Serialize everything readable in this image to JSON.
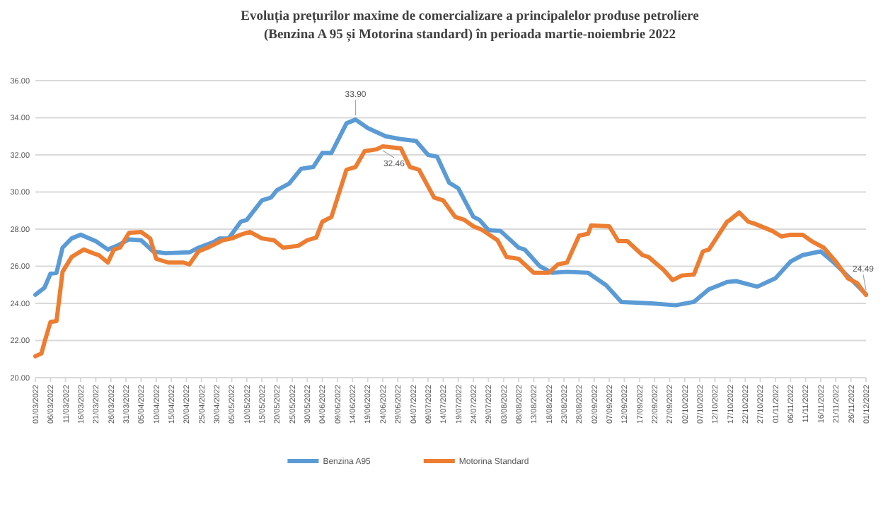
{
  "chart_data": {
    "type": "line",
    "title": "Evoluția prețurilor maxime de comercializare  a principalelor produse petroliere",
    "subtitle": "(Benzina A 95 și Motorina standard) în perioada martie-noiembrie  2022",
    "series": [
      {
        "name": "Benzina A95",
        "color": "#5b9bd5",
        "x": [
          "2022-03-01",
          "2022-03-04",
          "2022-03-06",
          "2022-03-08",
          "2022-03-10",
          "2022-03-13",
          "2022-03-16",
          "2022-03-21",
          "2022-03-25",
          "2022-03-28",
          "2022-04-01",
          "2022-04-05",
          "2022-04-09",
          "2022-04-13",
          "2022-04-21",
          "2022-04-24",
          "2022-04-29",
          "2022-05-01",
          "2022-05-04",
          "2022-05-08",
          "2022-05-10",
          "2022-05-15",
          "2022-05-18",
          "2022-05-20",
          "2022-05-24",
          "2022-05-28",
          "2022-06-01",
          "2022-06-04",
          "2022-06-07",
          "2022-06-12",
          "2022-06-15",
          "2022-06-19",
          "2022-06-25",
          "2022-06-30",
          "2022-07-05",
          "2022-07-09",
          "2022-07-12",
          "2022-07-16",
          "2022-07-19",
          "2022-07-24",
          "2022-07-26",
          "2022-07-29",
          "2022-08-02",
          "2022-08-08",
          "2022-08-10",
          "2022-08-15",
          "2022-08-19",
          "2022-08-24",
          "2022-08-31",
          "2022-09-06",
          "2022-09-11",
          "2022-09-21",
          "2022-09-29",
          "2022-10-05",
          "2022-10-10",
          "2022-10-16",
          "2022-10-19",
          "2022-10-26",
          "2022-11-01",
          "2022-11-06",
          "2022-11-10",
          "2022-11-16",
          "2022-11-20",
          "2022-11-27",
          "2022-12-01"
        ],
        "values": [
          24.46,
          24.84,
          25.6,
          25.65,
          27.0,
          27.5,
          27.7,
          27.35,
          26.9,
          27.1,
          27.45,
          27.4,
          26.8,
          26.7,
          26.75,
          27.0,
          27.3,
          27.5,
          27.5,
          28.4,
          28.5,
          29.55,
          29.7,
          30.1,
          30.45,
          31.25,
          31.35,
          32.1,
          32.1,
          33.7,
          33.9,
          33.45,
          33.0,
          32.85,
          32.75,
          32.0,
          31.9,
          30.5,
          30.2,
          28.66,
          28.5,
          27.95,
          27.9,
          27.0,
          26.9,
          26.0,
          25.65,
          25.7,
          25.65,
          24.97,
          24.08,
          24.0,
          23.9,
          24.08,
          24.76,
          25.15,
          25.2,
          24.9,
          25.35,
          26.25,
          26.6,
          26.8,
          26.25,
          25.15,
          24.49
        ]
      },
      {
        "name": "Motorina Standard",
        "color": "#ed7d31",
        "x": [
          "2022-03-01",
          "2022-03-03",
          "2022-03-04",
          "2022-03-06",
          "2022-03-08",
          "2022-03-10",
          "2022-03-13",
          "2022-03-14",
          "2022-03-17",
          "2022-03-21",
          "2022-03-22",
          "2022-03-25",
          "2022-03-27",
          "2022-03-29",
          "2022-04-01",
          "2022-04-05",
          "2022-04-08",
          "2022-04-10",
          "2022-04-14",
          "2022-04-19",
          "2022-04-21",
          "2022-04-24",
          "2022-04-27",
          "2022-05-02",
          "2022-05-05",
          "2022-05-08",
          "2022-05-11",
          "2022-05-15",
          "2022-05-19",
          "2022-05-22",
          "2022-05-27",
          "2022-05-30",
          "2022-06-02",
          "2022-06-04",
          "2022-06-07",
          "2022-06-12",
          "2022-06-15",
          "2022-06-18",
          "2022-06-22",
          "2022-06-24",
          "2022-06-30",
          "2022-07-03",
          "2022-07-06",
          "2022-07-09",
          "2022-07-11",
          "2022-07-14",
          "2022-07-18",
          "2022-07-21",
          "2022-07-24",
          "2022-07-27",
          "2022-08-01",
          "2022-08-04",
          "2022-08-08",
          "2022-08-13",
          "2022-08-18",
          "2022-08-21",
          "2022-08-24",
          "2022-08-28",
          "2022-08-31",
          "2022-09-01",
          "2022-09-07",
          "2022-09-10",
          "2022-09-13",
          "2022-09-18",
          "2022-09-20",
          "2022-09-25",
          "2022-09-28",
          "2022-10-01",
          "2022-10-05",
          "2022-10-08",
          "2022-10-10",
          "2022-10-13",
          "2022-10-16",
          "2022-10-17",
          "2022-10-20",
          "2022-10-23",
          "2022-10-25",
          "2022-10-31",
          "2022-11-03",
          "2022-11-06",
          "2022-11-10",
          "2022-11-13",
          "2022-11-17",
          "2022-11-21",
          "2022-11-25",
          "2022-11-28",
          "2022-12-01"
        ],
        "values": [
          21.15,
          21.3,
          21.9,
          23.0,
          23.05,
          25.7,
          26.5,
          26.6,
          26.9,
          26.65,
          26.6,
          26.2,
          26.9,
          27.0,
          27.8,
          27.85,
          27.5,
          26.4,
          26.2,
          26.2,
          26.1,
          26.8,
          27.0,
          27.4,
          27.5,
          27.7,
          27.85,
          27.5,
          27.4,
          27.0,
          27.1,
          27.4,
          27.55,
          28.4,
          28.65,
          31.2,
          31.35,
          32.2,
          32.3,
          32.46,
          32.35,
          31.35,
          31.2,
          30.3,
          29.7,
          29.55,
          28.66,
          28.5,
          28.15,
          27.95,
          27.4,
          26.5,
          26.4,
          25.65,
          25.65,
          26.1,
          26.2,
          27.65,
          27.75,
          28.2,
          28.15,
          27.35,
          27.35,
          26.6,
          26.5,
          25.8,
          25.25,
          25.5,
          25.55,
          26.8,
          26.9,
          27.65,
          28.4,
          28.5,
          28.9,
          28.4,
          28.3,
          27.9,
          27.6,
          27.7,
          27.7,
          27.35,
          27.0,
          26.25,
          25.35,
          25.1,
          24.45
        ]
      }
    ],
    "annotations": [
      {
        "text": "33.90",
        "x": "2022-06-15",
        "y": 33.9
      },
      {
        "text": "32.46",
        "x": "2022-06-24",
        "y": 32.46
      },
      {
        "text": "24.49",
        "x": "2022-12-01",
        "y": 24.49
      }
    ],
    "xlim": [
      "2022-03-01",
      "2022-12-01"
    ],
    "xticks": [
      {
        "value": "2022-03-01",
        "label": "01/03/2022"
      },
      {
        "value": "2022-03-06",
        "label": "06/03/2022"
      },
      {
        "value": "2022-03-11",
        "label": "11/03/2022"
      },
      {
        "value": "2022-03-16",
        "label": "16/03/2022"
      },
      {
        "value": "2022-03-21",
        "label": "21/03/2022"
      },
      {
        "value": "2022-03-26",
        "label": "26/03/2022"
      },
      {
        "value": "2022-03-31",
        "label": "31/03/2022"
      },
      {
        "value": "2022-04-05",
        "label": "05/04/2022"
      },
      {
        "value": "2022-04-10",
        "label": "10/04/2022"
      },
      {
        "value": "2022-04-15",
        "label": "15/04/2022"
      },
      {
        "value": "2022-04-20",
        "label": "20/04/2022"
      },
      {
        "value": "2022-04-25",
        "label": "25/04/2022"
      },
      {
        "value": "2022-04-30",
        "label": "30/04/2022"
      },
      {
        "value": "2022-05-05",
        "label": "05/05/2022"
      },
      {
        "value": "2022-05-10",
        "label": "10/05/2022"
      },
      {
        "value": "2022-05-15",
        "label": "15/05/2022"
      },
      {
        "value": "2022-05-20",
        "label": "20/05/2022"
      },
      {
        "value": "2022-05-25",
        "label": "25/05/2022"
      },
      {
        "value": "2022-05-30",
        "label": "30/05/2022"
      },
      {
        "value": "2022-06-04",
        "label": "04/06/2022"
      },
      {
        "value": "2022-06-09",
        "label": "09/06/2022"
      },
      {
        "value": "2022-06-14",
        "label": "14/06/2022"
      },
      {
        "value": "2022-06-19",
        "label": "19/06/2022"
      },
      {
        "value": "2022-06-24",
        "label": "24/06/2022"
      },
      {
        "value": "2022-06-29",
        "label": "29/06/2022"
      },
      {
        "value": "2022-07-04",
        "label": "04/07/2022"
      },
      {
        "value": "2022-07-09",
        "label": "09/07/2022"
      },
      {
        "value": "2022-07-14",
        "label": "14/07/2022"
      },
      {
        "value": "2022-07-19",
        "label": "19/07/2022"
      },
      {
        "value": "2022-07-24",
        "label": "24/07/2022"
      },
      {
        "value": "2022-07-29",
        "label": "29/07/2022"
      },
      {
        "value": "2022-08-03",
        "label": "03/08/2022"
      },
      {
        "value": "2022-08-08",
        "label": "08/08/2022"
      },
      {
        "value": "2022-08-13",
        "label": "13/08/2022"
      },
      {
        "value": "2022-08-18",
        "label": "18/08/2022"
      },
      {
        "value": "2022-08-23",
        "label": "23/08/2022"
      },
      {
        "value": "2022-08-28",
        "label": "28/08/2022"
      },
      {
        "value": "2022-09-02",
        "label": "02/09/2022"
      },
      {
        "value": "2022-09-07",
        "label": "07/09/2022"
      },
      {
        "value": "2022-09-12",
        "label": "12/09/2022"
      },
      {
        "value": "2022-09-17",
        "label": "17/09/2022"
      },
      {
        "value": "2022-09-22",
        "label": "22/09/2022"
      },
      {
        "value": "2022-09-27",
        "label": "27/09/2022"
      },
      {
        "value": "2022-10-02",
        "label": "02/10/2022"
      },
      {
        "value": "2022-10-07",
        "label": "07/10/2022"
      },
      {
        "value": "2022-10-12",
        "label": "12/10/2022"
      },
      {
        "value": "2022-10-17",
        "label": "17/10/2022"
      },
      {
        "value": "2022-10-22",
        "label": "22/10/2022"
      },
      {
        "value": "2022-10-27",
        "label": "27/10/2022"
      },
      {
        "value": "2022-11-01",
        "label": "01/11/2022"
      },
      {
        "value": "2022-11-06",
        "label": "06/11/2022"
      },
      {
        "value": "2022-11-11",
        "label": "11/11/2022"
      },
      {
        "value": "2022-11-16",
        "label": "16/11/2022"
      },
      {
        "value": "2022-11-21",
        "label": "21/11/2022"
      },
      {
        "value": "2022-11-26",
        "label": "26/11/2022"
      },
      {
        "value": "2022-12-01",
        "label": "01/12/2022"
      }
    ],
    "ylim": [
      20,
      36
    ],
    "yticks": [
      {
        "value": 20,
        "label": "20.00"
      },
      {
        "value": 22,
        "label": "22.00"
      },
      {
        "value": 24,
        "label": "24.00"
      },
      {
        "value": 26,
        "label": "26.00"
      },
      {
        "value": 28,
        "label": "28.00"
      },
      {
        "value": 30,
        "label": "30.00"
      },
      {
        "value": 32,
        "label": "32.00"
      },
      {
        "value": 34,
        "label": "34.00"
      },
      {
        "value": 36,
        "label": "36.00"
      }
    ],
    "grid": "y",
    "legend": "bottom",
    "marker": "none",
    "line_style": "solid"
  }
}
